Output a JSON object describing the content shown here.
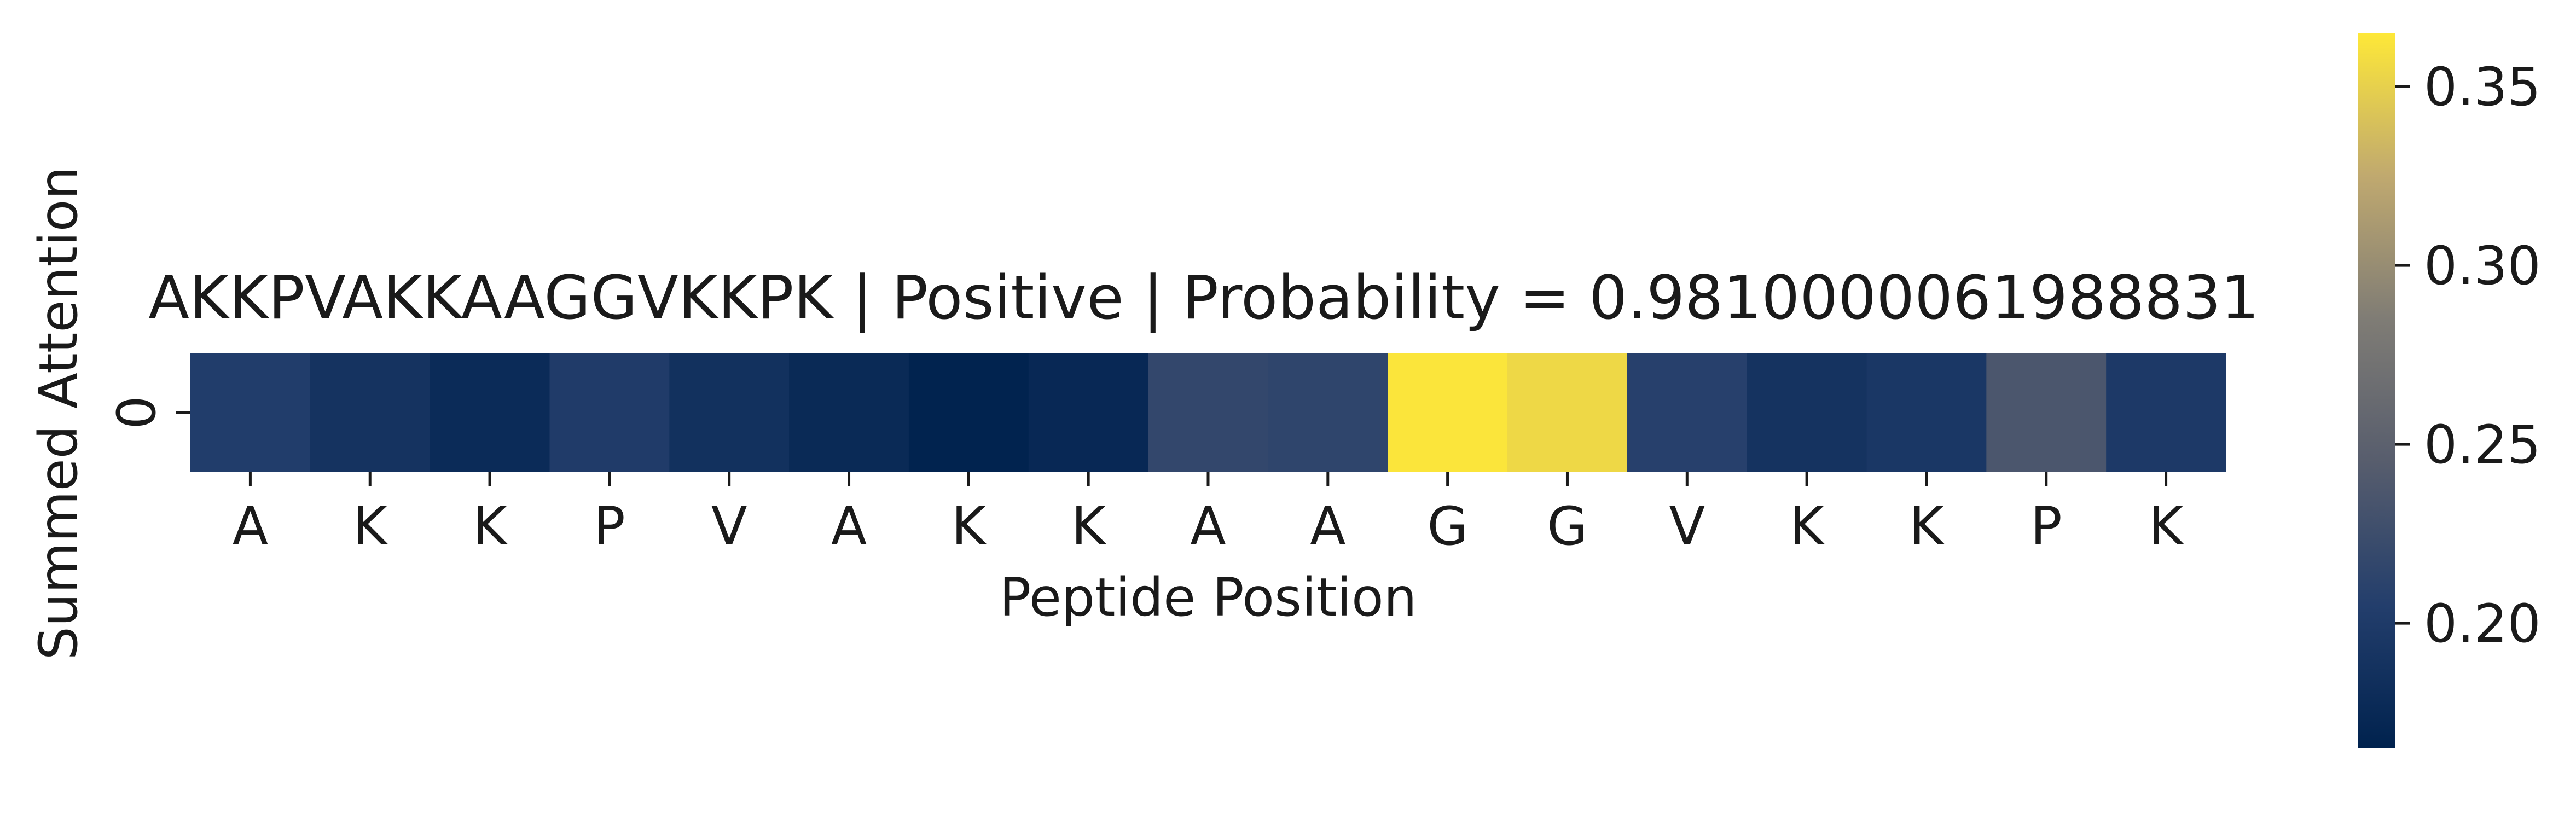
{
  "chart_data": {
    "type": "heatmap",
    "title": "AKKPVAKKAAGGVKKPK | Positive | Probability = 0.9810000061988831",
    "xlabel": "Peptide Position",
    "ylabel": "Summed Attention",
    "y_categories": [
      "0"
    ],
    "x_categories": [
      "A",
      "K",
      "K",
      "P",
      "V",
      "A",
      "K",
      "K",
      "A",
      "A",
      "G",
      "G",
      "V",
      "K",
      "K",
      "P",
      "K"
    ],
    "values": [
      [
        0.203,
        0.189,
        0.178,
        0.201,
        0.186,
        0.176,
        0.166,
        0.174,
        0.217,
        0.214,
        0.363,
        0.355,
        0.208,
        0.189,
        0.195,
        0.236,
        0.198
      ]
    ],
    "colormap": "cividis",
    "colorbar": {
      "vmin": 0.165,
      "vmax": 0.365,
      "ticks": [
        0.2,
        0.25,
        0.3,
        0.35
      ],
      "tick_labels": [
        "0.20",
        "0.25",
        "0.30",
        "0.35"
      ]
    }
  }
}
